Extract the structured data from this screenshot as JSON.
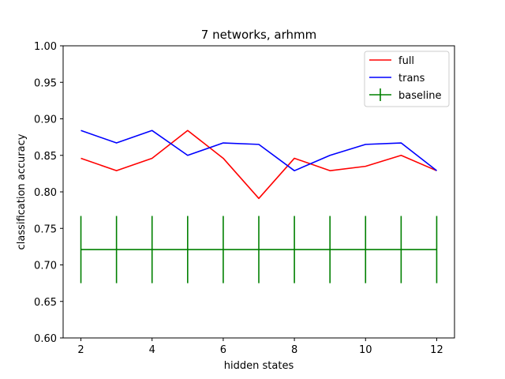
{
  "chart_data": {
    "type": "line",
    "title": "7 networks, arhmm",
    "xlabel": "hidden states",
    "ylabel": "classification accuracy",
    "xlim": [
      1.5,
      12.5
    ],
    "ylim": [
      0.6,
      1.0
    ],
    "xticks": [
      2,
      4,
      6,
      8,
      10,
      12
    ],
    "yticks": [
      0.6,
      0.65,
      0.7,
      0.75,
      0.8,
      0.85,
      0.9,
      0.95,
      1.0
    ],
    "ytick_labels": [
      "0.60",
      "0.65",
      "0.70",
      "0.75",
      "0.80",
      "0.85",
      "0.90",
      "0.95",
      "1.00"
    ],
    "grid": false,
    "legend": "top-right",
    "x": [
      2,
      3,
      4,
      5,
      6,
      7,
      8,
      9,
      10,
      11,
      12
    ],
    "series": [
      {
        "name": "full",
        "color": "#ff0000",
        "values": [
          0.846,
          0.829,
          0.846,
          0.884,
          0.846,
          0.791,
          0.846,
          0.829,
          0.835,
          0.85,
          0.829
        ]
      },
      {
        "name": "trans",
        "color": "#0000ff",
        "values": [
          0.884,
          0.867,
          0.884,
          0.85,
          0.867,
          0.865,
          0.829,
          0.85,
          0.865,
          0.867,
          0.829
        ]
      },
      {
        "name": "baseline",
        "color": "#008000",
        "errorbar": true,
        "values": [
          0.721,
          0.721,
          0.721,
          0.721,
          0.721,
          0.721,
          0.721,
          0.721,
          0.721,
          0.721,
          0.721
        ],
        "error": 0.046
      }
    ]
  }
}
